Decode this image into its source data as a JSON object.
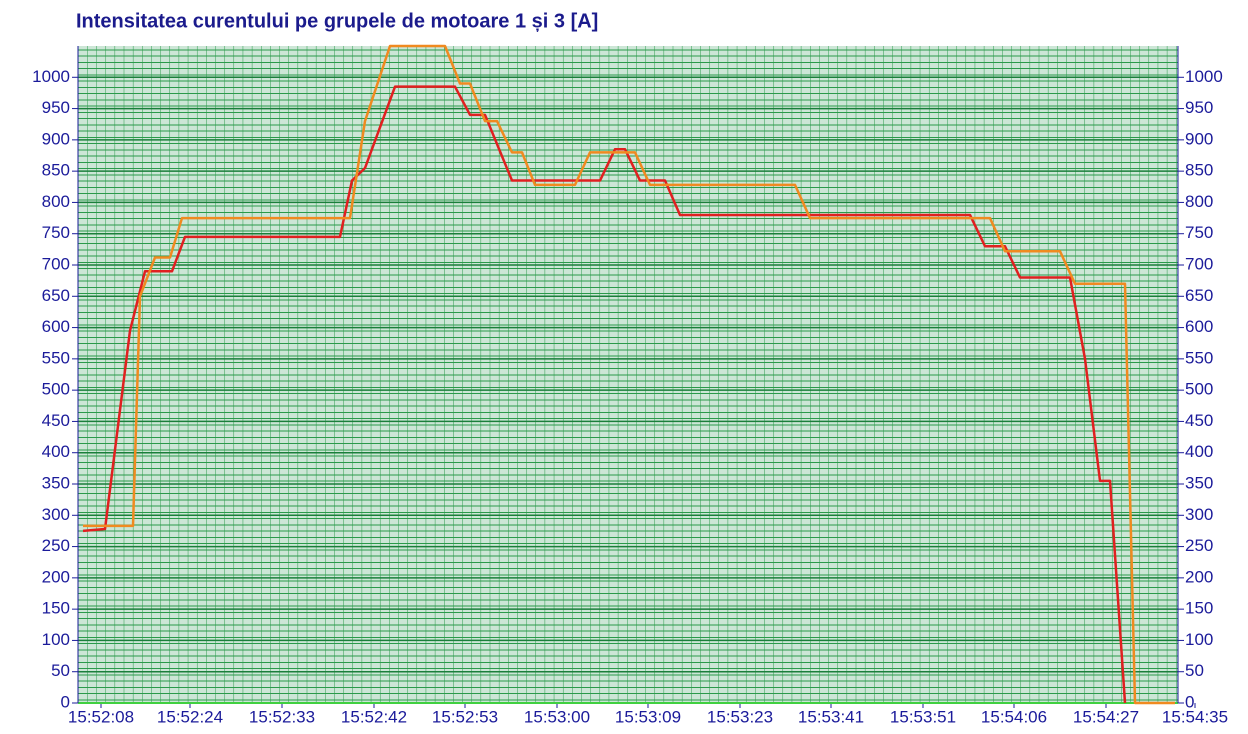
{
  "chart_data": {
    "type": "line",
    "title": "Intensitatea curentului pe grupele de motoare 1 și 3 [A]",
    "xlim": [
      0,
      110
    ],
    "ylim": [
      0,
      1050
    ],
    "yticks": [
      0,
      50,
      100,
      150,
      200,
      250,
      300,
      350,
      400,
      450,
      500,
      550,
      600,
      650,
      700,
      750,
      800,
      850,
      900,
      950,
      1000
    ],
    "xticks": [
      {
        "value": 2.3,
        "label": "15:52:08"
      },
      {
        "value": 11.2,
        "label": "15:52:24"
      },
      {
        "value": 20.4,
        "label": "15:52:33"
      },
      {
        "value": 29.6,
        "label": "15:52:42"
      },
      {
        "value": 38.7,
        "label": "15:52:53"
      },
      {
        "value": 47.9,
        "label": "15:53:00"
      },
      {
        "value": 57.0,
        "label": "15:53:09"
      },
      {
        "value": 66.2,
        "label": "15:53:23"
      },
      {
        "value": 75.3,
        "label": "15:53:41"
      },
      {
        "value": 84.5,
        "label": "15:53:51"
      },
      {
        "value": 93.6,
        "label": "15:54:06"
      },
      {
        "value": 102.8,
        "label": "15:54:27"
      },
      {
        "value": 111.7,
        "label": "15:54:35"
      }
    ],
    "grid": true,
    "series": [
      {
        "color": "#e02020",
        "x": [
          0.5,
          2.7,
          5.2,
          6.7,
          9.4,
          10.7,
          26.2,
          27.4,
          28.7,
          31.7,
          37.7,
          39.2,
          40.7,
          43.4,
          52.2,
          53.7,
          54.7,
          56.2,
          58.7,
          60.2,
          89.2,
          90.7,
          92.7,
          94.2,
          99.2,
          100.7,
          102.2,
          103.2,
          104.7
        ],
        "values": [
          275,
          278,
          595,
          690,
          690,
          745,
          745,
          835,
          855,
          985,
          985,
          940,
          940,
          835,
          835,
          885,
          885,
          835,
          835,
          780,
          780,
          730,
          730,
          680,
          680,
          550,
          355,
          355,
          0
        ]
      },
      {
        "color": "#f08a20",
        "x": [
          0.5,
          5.5,
          6.2,
          7.7,
          9.2,
          10.4,
          27.2,
          28.7,
          31.2,
          36.7,
          38.2,
          39.2,
          40.7,
          41.9,
          43.4,
          44.4,
          45.7,
          49.7,
          51.2,
          55.7,
          57.2,
          71.7,
          73.2,
          91.2,
          92.7,
          98.2,
          99.7,
          104.7,
          105.7,
          109.7
        ],
        "values": [
          283,
          283,
          650,
          712,
          712,
          775,
          775,
          930,
          1050,
          1050,
          990,
          990,
          930,
          930,
          880,
          880,
          828,
          828,
          880,
          880,
          828,
          828,
          775,
          775,
          722,
          722,
          670,
          670,
          0,
          0
        ]
      }
    ]
  }
}
